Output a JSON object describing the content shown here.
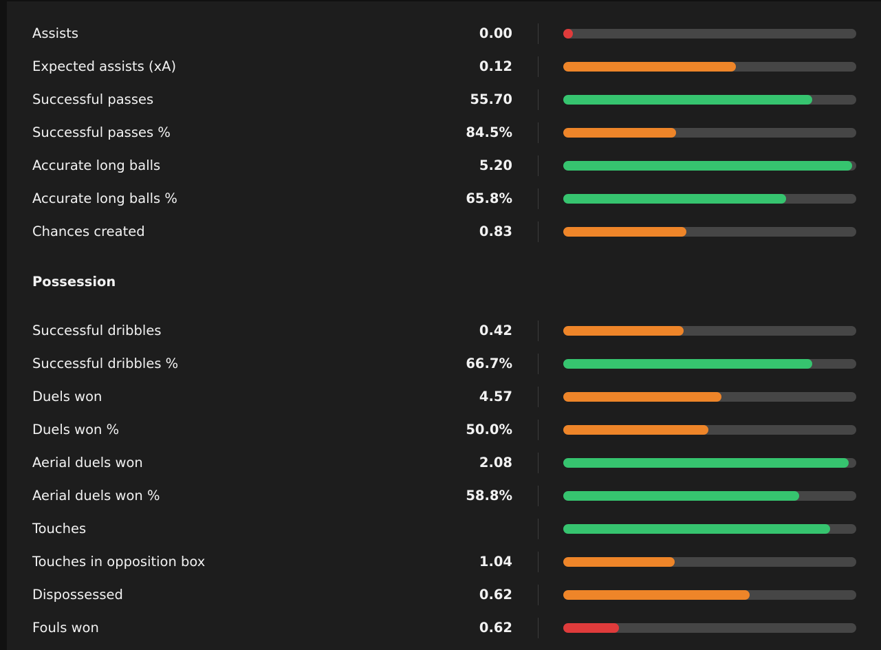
{
  "colors": {
    "good": "#36c46f",
    "average": "#ee8529",
    "poor": "#df3b3b",
    "track": "#464646"
  },
  "stats_top": [
    {
      "label": "Assists",
      "value": "0.00",
      "fill": 0.03,
      "level": "poor"
    },
    {
      "label": "Expected assists (xA)",
      "value": "0.12",
      "fill": 0.59,
      "level": "average"
    },
    {
      "label": "Successful passes",
      "value": "55.70",
      "fill": 0.85,
      "level": "good"
    },
    {
      "label": "Successful passes %",
      "value": "84.5%",
      "fill": 0.385,
      "level": "average"
    },
    {
      "label": "Accurate long balls",
      "value": "5.20",
      "fill": 0.985,
      "level": "good"
    },
    {
      "label": "Accurate long balls %",
      "value": "65.8%",
      "fill": 0.76,
      "level": "good"
    },
    {
      "label": "Chances created",
      "value": "0.83",
      "fill": 0.42,
      "level": "average"
    }
  ],
  "section": {
    "title": "Possession"
  },
  "stats_possession": [
    {
      "label": "Successful dribbles",
      "value": "0.42",
      "fill": 0.41,
      "level": "average"
    },
    {
      "label": "Successful dribbles %",
      "value": "66.7%",
      "fill": 0.85,
      "level": "good"
    },
    {
      "label": "Duels won",
      "value": "4.57",
      "fill": 0.54,
      "level": "average"
    },
    {
      "label": "Duels won %",
      "value": "50.0%",
      "fill": 0.495,
      "level": "average"
    },
    {
      "label": "Aerial duels won",
      "value": "2.08",
      "fill": 0.975,
      "level": "good"
    },
    {
      "label": "Aerial duels won %",
      "value": "58.8%",
      "fill": 0.805,
      "level": "good"
    },
    {
      "label": "Touches",
      "value": "",
      "fill": 0.91,
      "level": "good"
    },
    {
      "label": "Touches in opposition box",
      "value": "1.04",
      "fill": 0.38,
      "level": "average"
    },
    {
      "label": "Dispossessed",
      "value": "0.62",
      "fill": 0.635,
      "level": "average"
    },
    {
      "label": "Fouls won",
      "value": "0.62",
      "fill": 0.19,
      "level": "poor"
    }
  ]
}
